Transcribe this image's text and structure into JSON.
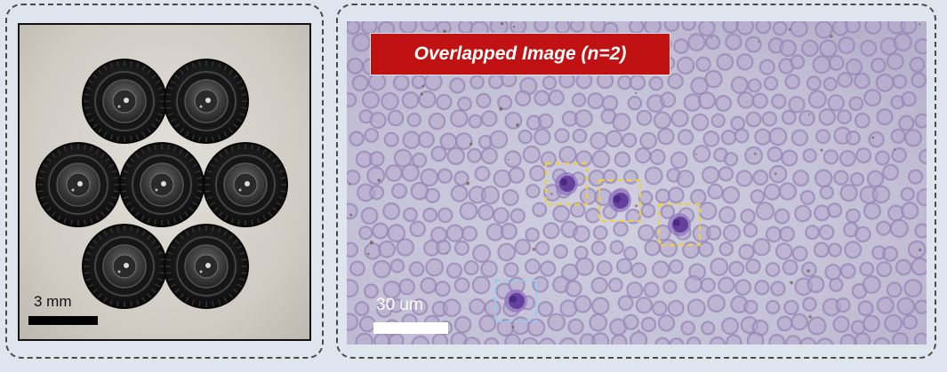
{
  "left_panel": {
    "scale_label": "3 mm"
  },
  "right_panel": {
    "title": "Overlapped Image (n=2)",
    "title_bg_color": "#c01212",
    "scale_label": "30 um",
    "highlight_colors": {
      "yellow_boxes": "#f2cf3a",
      "blue_box": "#8fd0f0"
    }
  }
}
